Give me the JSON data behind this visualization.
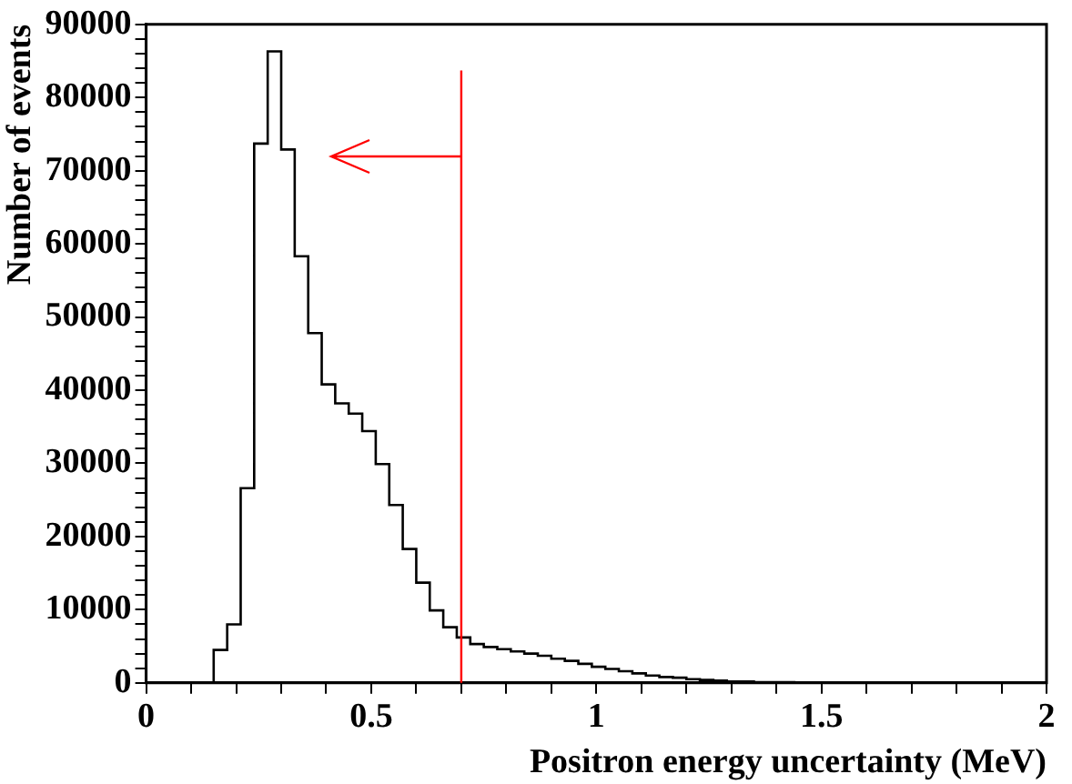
{
  "chart_data": {
    "type": "histogram",
    "xlabel": "Positron energy uncertainty (MeV)",
    "ylabel": "Number of events",
    "color": "#000000",
    "bins": [
      0.15,
      0.18,
      0.21,
      0.24,
      0.27,
      0.3,
      0.33,
      0.36,
      0.39,
      0.42,
      0.45,
      0.48,
      0.51,
      0.54,
      0.57,
      0.6,
      0.63,
      0.66,
      0.69,
      0.72,
      0.75,
      0.78,
      0.81,
      0.84,
      0.87,
      0.9,
      0.93,
      0.96,
      0.99,
      1.02,
      1.05,
      1.08,
      1.11,
      1.14,
      1.17,
      1.2,
      1.23,
      1.26,
      1.29,
      1.32,
      1.35,
      1.38,
      1.41,
      1.44,
      1.47,
      1.5
    ],
    "values": [
      4500,
      8000,
      26600,
      73700,
      86300,
      72900,
      58300,
      47800,
      40800,
      38200,
      36800,
      34400,
      29900,
      24300,
      18300,
      13700,
      9900,
      7600,
      6200,
      5300,
      4900,
      4600,
      4300,
      4000,
      3700,
      3300,
      3000,
      2600,
      2200,
      1900,
      1600,
      1300,
      1000,
      800,
      700,
      500,
      400,
      300,
      200,
      200,
      100,
      100,
      100,
      0,
      0
    ],
    "xlim": [
      0,
      2
    ],
    "xticks": [
      0,
      {
        "value": 0.1,
        "label": null
      },
      {
        "value": 0.2,
        "label": null
      },
      {
        "value": 0.3,
        "label": null
      },
      {
        "value": 0.4,
        "label": null
      },
      0.5,
      {
        "value": 0.6,
        "label": null
      },
      {
        "value": 0.7,
        "label": null
      },
      {
        "value": 0.8,
        "label": null
      },
      {
        "value": 0.9,
        "label": null
      },
      1,
      {
        "value": 1.1,
        "label": null
      },
      {
        "value": 1.2,
        "label": null
      },
      {
        "value": 1.3,
        "label": null
      },
      {
        "value": 1.4,
        "label": null
      },
      1.5,
      {
        "value": 1.6,
        "label": null
      },
      {
        "value": 1.7,
        "label": null
      },
      {
        "value": 1.8,
        "label": null
      },
      {
        "value": 1.9,
        "label": null
      },
      2
    ],
    "ylim": [
      0,
      90000
    ],
    "yticks": [
      0,
      {
        "value": 2000,
        "label": null
      },
      {
        "value": 4000,
        "label": null
      },
      {
        "value": 6000,
        "label": null
      },
      {
        "value": 8000,
        "label": null
      },
      10000,
      {
        "value": 12000,
        "label": null
      },
      {
        "value": 14000,
        "label": null
      },
      {
        "value": 16000,
        "label": null
      },
      {
        "value": 18000,
        "label": null
      },
      20000,
      {
        "value": 22000,
        "label": null
      },
      {
        "value": 24000,
        "label": null
      },
      {
        "value": 26000,
        "label": null
      },
      {
        "value": 28000,
        "label": null
      },
      30000,
      {
        "value": 32000,
        "label": null
      },
      {
        "value": 34000,
        "label": null
      },
      {
        "value": 36000,
        "label": null
      },
      {
        "value": 38000,
        "label": null
      },
      40000,
      {
        "value": 42000,
        "label": null
      },
      {
        "value": 44000,
        "label": null
      },
      {
        "value": 46000,
        "label": null
      },
      {
        "value": 48000,
        "label": null
      },
      50000,
      {
        "value": 52000,
        "label": null
      },
      {
        "value": 54000,
        "label": null
      },
      {
        "value": 56000,
        "label": null
      },
      {
        "value": 58000,
        "label": null
      },
      60000,
      {
        "value": 62000,
        "label": null
      },
      {
        "value": 64000,
        "label": null
      },
      {
        "value": 66000,
        "label": null
      },
      {
        "value": 68000,
        "label": null
      },
      70000,
      {
        "value": 72000,
        "label": null
      },
      {
        "value": 74000,
        "label": null
      },
      {
        "value": 76000,
        "label": null
      },
      {
        "value": 78000,
        "label": null
      },
      80000,
      {
        "value": 82000,
        "label": null
      },
      {
        "value": 84000,
        "label": null
      },
      {
        "value": 86000,
        "label": null
      },
      {
        "value": 88000,
        "label": null
      },
      90000
    ],
    "ref_lines": [
      {
        "axis": "x",
        "value": 0.7,
        "color": "#ff0000"
      }
    ],
    "grid": false,
    "legend": false
  }
}
